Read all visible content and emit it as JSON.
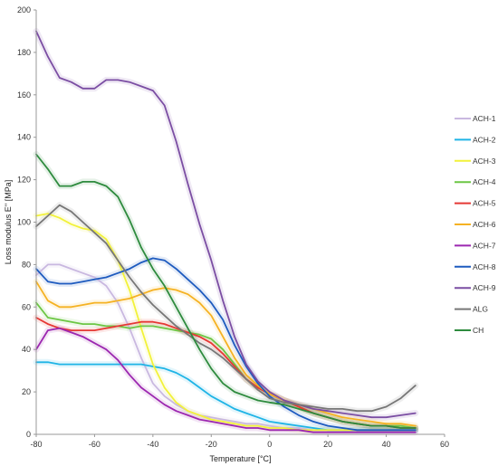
{
  "chart_data": {
    "type": "line",
    "xlabel": "Temperature [°C]",
    "ylabel": "Loss modulus E'' [MPa]",
    "xlim": [
      -80,
      60
    ],
    "ylim": [
      0,
      200
    ],
    "x_ticks": [
      "-80",
      "-60",
      "-40",
      "-20",
      "0",
      "20",
      "40",
      "60"
    ],
    "y_ticks": [
      "0",
      "20",
      "40",
      "60",
      "80",
      "100",
      "120",
      "140",
      "160",
      "180",
      "200"
    ],
    "x_tick_values": [
      -80,
      -60,
      -40,
      -20,
      0,
      20,
      40,
      60
    ],
    "y_tick_values": [
      0,
      20,
      40,
      60,
      80,
      100,
      120,
      140,
      160,
      180,
      200
    ],
    "grid": false,
    "legend": "right",
    "series": [
      {
        "name": "ACH-1",
        "color": "#c9b8e0",
        "x": [
          -80,
          -76,
          -72,
          -68,
          -64,
          -60,
          -56,
          -52,
          -48,
          -44,
          -40,
          -36,
          -32,
          -28,
          -24,
          -20,
          -16,
          -12,
          -8,
          -4,
          0,
          5,
          10,
          15,
          20,
          25,
          30,
          35,
          40,
          45,
          50
        ],
        "y": [
          75,
          80,
          80,
          78,
          76,
          74,
          70,
          62,
          50,
          36,
          24,
          18,
          14,
          11,
          9,
          8,
          7,
          6,
          5,
          5,
          4,
          3,
          3,
          2,
          2,
          2,
          2,
          2,
          2,
          2,
          2
        ]
      },
      {
        "name": "ACH-2",
        "color": "#1fb4e6",
        "x": [
          -80,
          -76,
          -72,
          -68,
          -64,
          -60,
          -56,
          -52,
          -48,
          -44,
          -40,
          -36,
          -32,
          -28,
          -24,
          -20,
          -16,
          -12,
          -8,
          -4,
          0,
          5,
          10,
          15,
          20,
          25,
          30,
          35,
          40,
          45,
          50
        ],
        "y": [
          34,
          34,
          33,
          33,
          33,
          33,
          33,
          33,
          33,
          33,
          32,
          31,
          29,
          26,
          22,
          18,
          15,
          12,
          10,
          8,
          6,
          5,
          4,
          3,
          2,
          2,
          2,
          2,
          2,
          2,
          2
        ]
      },
      {
        "name": "ACH-3",
        "color": "#f2f23a",
        "x": [
          -80,
          -76,
          -72,
          -68,
          -64,
          -60,
          -56,
          -52,
          -48,
          -44,
          -40,
          -36,
          -32,
          -28,
          -24,
          -20,
          -16,
          -12,
          -8,
          -4,
          0,
          5,
          10,
          15,
          20,
          25,
          30,
          35,
          40,
          45,
          50
        ],
        "y": [
          103,
          104,
          102,
          99,
          97,
          96,
          92,
          82,
          68,
          50,
          33,
          22,
          15,
          11,
          9,
          7,
          6,
          5,
          4,
          4,
          3,
          3,
          2,
          2,
          2,
          2,
          2,
          2,
          2,
          2,
          2
        ]
      },
      {
        "name": "ACH-4",
        "color": "#6cc644",
        "x": [
          -80,
          -76,
          -72,
          -68,
          -64,
          -60,
          -56,
          -52,
          -48,
          -44,
          -40,
          -36,
          -32,
          -28,
          -24,
          -20,
          -16,
          -12,
          -8,
          -4,
          0,
          5,
          10,
          15,
          20,
          25,
          30,
          35,
          40,
          45,
          50
        ],
        "y": [
          62,
          55,
          54,
          53,
          52,
          52,
          51,
          51,
          50,
          51,
          51,
          50,
          49,
          48,
          47,
          45,
          40,
          33,
          26,
          22,
          19,
          16,
          13,
          10,
          8,
          6,
          5,
          4,
          4,
          4,
          3
        ]
      },
      {
        "name": "ACH-5",
        "color": "#e53935",
        "x": [
          -80,
          -76,
          -72,
          -68,
          -64,
          -60,
          -56,
          -52,
          -48,
          -44,
          -40,
          -36,
          -32,
          -28,
          -24,
          -20,
          -16,
          -12,
          -8,
          -4,
          0,
          5,
          10,
          15,
          20,
          25,
          30,
          35,
          40,
          45,
          50
        ],
        "y": [
          55,
          52,
          50,
          49,
          49,
          49,
          50,
          51,
          52,
          53,
          53,
          52,
          50,
          48,
          46,
          43,
          38,
          32,
          26,
          22,
          19,
          16,
          13,
          10,
          8,
          6,
          5,
          4,
          4,
          3,
          3
        ]
      },
      {
        "name": "ACH-6",
        "color": "#f5b223",
        "x": [
          -80,
          -76,
          -72,
          -68,
          -64,
          -60,
          -56,
          -52,
          -48,
          -44,
          -40,
          -36,
          -32,
          -28,
          -24,
          -20,
          -16,
          -12,
          -8,
          -4,
          0,
          5,
          10,
          15,
          20,
          25,
          30,
          35,
          40,
          45,
          50
        ],
        "y": [
          72,
          63,
          60,
          60,
          61,
          62,
          62,
          63,
          64,
          66,
          68,
          69,
          68,
          66,
          62,
          56,
          46,
          36,
          28,
          23,
          19,
          16,
          14,
          12,
          10,
          8,
          7,
          6,
          5,
          5,
          4
        ]
      },
      {
        "name": "ACH-7",
        "color": "#9c27b0",
        "x": [
          -80,
          -76,
          -72,
          -68,
          -64,
          -60,
          -56,
          -52,
          -48,
          -44,
          -40,
          -36,
          -32,
          -28,
          -24,
          -20,
          -16,
          -12,
          -8,
          -4,
          0,
          5,
          10,
          15,
          20,
          25,
          30,
          35,
          40,
          45,
          50
        ],
        "y": [
          40,
          49,
          50,
          48,
          46,
          43,
          40,
          35,
          28,
          22,
          18,
          14,
          11,
          9,
          7,
          6,
          5,
          4,
          3,
          3,
          2,
          2,
          2,
          1,
          1,
          1,
          1,
          1,
          1,
          1,
          1
        ]
      },
      {
        "name": "ACH-8",
        "color": "#1e5bbf",
        "x": [
          -80,
          -76,
          -72,
          -68,
          -64,
          -60,
          -56,
          -52,
          -48,
          -44,
          -40,
          -36,
          -32,
          -28,
          -24,
          -20,
          -16,
          -12,
          -8,
          -4,
          0,
          5,
          10,
          15,
          20,
          25,
          30,
          35,
          40,
          45,
          50
        ],
        "y": [
          78,
          72,
          71,
          71,
          72,
          73,
          74,
          76,
          78,
          81,
          83,
          82,
          78,
          73,
          68,
          62,
          54,
          42,
          32,
          24,
          18,
          13,
          9,
          6,
          4,
          3,
          2,
          2,
          2,
          2,
          2
        ]
      },
      {
        "name": "ACH-9",
        "color": "#7b4ea3",
        "x": [
          -80,
          -76,
          -72,
          -68,
          -64,
          -60,
          -56,
          -52,
          -48,
          -44,
          -40,
          -36,
          -32,
          -28,
          -24,
          -20,
          -16,
          -12,
          -8,
          -4,
          0,
          5,
          10,
          15,
          20,
          25,
          30,
          35,
          40,
          45,
          50
        ],
        "y": [
          190,
          178,
          168,
          166,
          163,
          163,
          167,
          167,
          166,
          164,
          162,
          155,
          138,
          118,
          99,
          82,
          63,
          46,
          33,
          25,
          20,
          16,
          14,
          12,
          11,
          10,
          9,
          8,
          8,
          9,
          10
        ]
      },
      {
        "name": "ALG",
        "color": "#777777",
        "x": [
          -80,
          -76,
          -72,
          -68,
          -64,
          -60,
          -56,
          -52,
          -48,
          -44,
          -40,
          -36,
          -32,
          -28,
          -24,
          -20,
          -16,
          -12,
          -8,
          -4,
          0,
          5,
          10,
          15,
          20,
          25,
          30,
          35,
          40,
          45,
          50
        ],
        "y": [
          98,
          103,
          108,
          105,
          100,
          95,
          90,
          82,
          74,
          67,
          61,
          56,
          51,
          47,
          43,
          40,
          36,
          31,
          26,
          21,
          17,
          15,
          14,
          13,
          12,
          12,
          11,
          11,
          13,
          17,
          23
        ]
      },
      {
        "name": "CH",
        "color": "#2e8b3e",
        "x": [
          -80,
          -76,
          -72,
          -68,
          -64,
          -60,
          -56,
          -52,
          -48,
          -44,
          -40,
          -36,
          -32,
          -28,
          -24,
          -20,
          -16,
          -12,
          -8,
          -4,
          0,
          5,
          10,
          15,
          20,
          25,
          30,
          35,
          40,
          45,
          50
        ],
        "y": [
          132,
          125,
          117,
          117,
          119,
          119,
          117,
          112,
          101,
          88,
          78,
          70,
          60,
          50,
          40,
          31,
          24,
          20,
          18,
          16,
          15,
          14,
          12,
          10,
          8,
          6,
          5,
          4,
          4,
          3,
          3
        ]
      }
    ]
  }
}
